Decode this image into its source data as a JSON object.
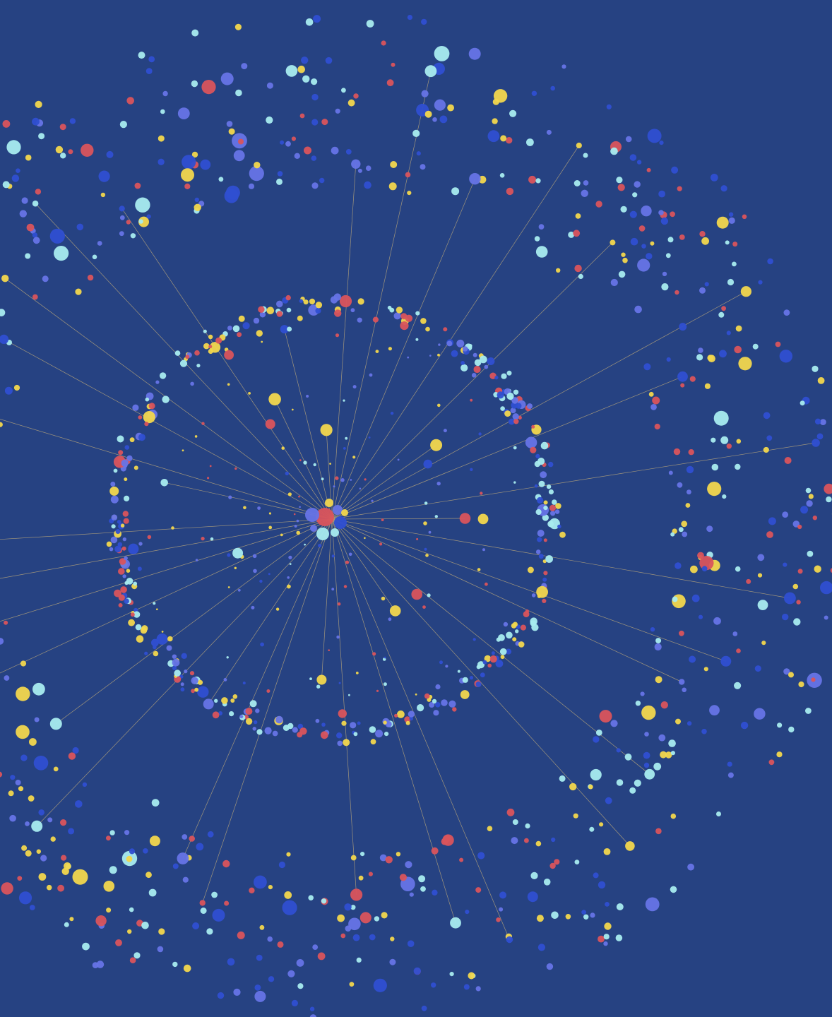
{
  "diagram": {
    "type": "radial-network",
    "background": "#264282",
    "palette": {
      "red": "#d9545c",
      "yellow": "#f2d74d",
      "cyan": "#a8ecef",
      "periwinkle": "#6674e6",
      "blue": "#2f4fd1",
      "edge": "#c9b27a"
    },
    "rings": [
      {
        "name": "hub",
        "node_count": 9
      },
      {
        "name": "inner-ring",
        "node_count": 520
      },
      {
        "name": "outer-ring",
        "node_count": 760
      }
    ],
    "edge_count": 38,
    "labels": []
  }
}
